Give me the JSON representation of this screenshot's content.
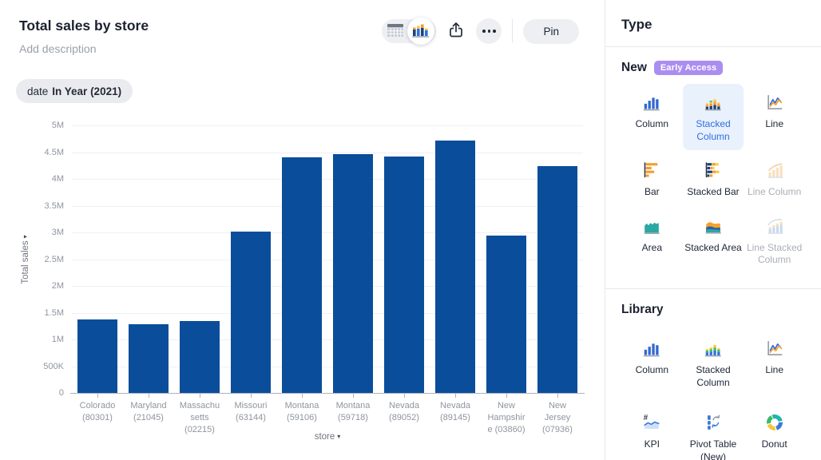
{
  "header": {
    "title": "Total sales by store",
    "description_placeholder": "Add description"
  },
  "toolbar": {
    "pin_label": "Pin"
  },
  "filter_chip": {
    "field": "date",
    "condition": "In Year (2021)"
  },
  "icons": {
    "caret_down": "▾"
  },
  "chart_data": {
    "type": "bar",
    "title": "Total sales by store",
    "x": [
      "Colorado (80301)",
      "Maryland (21045)",
      "Massachusetts (02215)",
      "Missouri (63144)",
      "Montana (59106)",
      "Montana (59718)",
      "Nevada (89052)",
      "Nevada (89145)",
      "New Hampshire (03860)",
      "New Jersey (07936)"
    ],
    "x_display": [
      "Colorado\n(80301)",
      "Maryland\n(21045)",
      "Massachu\nsetts\n(02215)",
      "Missouri\n(63144)",
      "Montana\n(59106)",
      "Montana\n(59718)",
      "Nevada\n(89052)",
      "Nevada\n(89145)",
      "New\nHampshir\ne (03860)",
      "New\nJersey\n(07936)"
    ],
    "values": [
      1370000,
      1290000,
      1350000,
      3010000,
      4400000,
      4470000,
      4420000,
      4720000,
      2940000,
      4240000
    ],
    "xlabel": "store",
    "ylabel": "Total sales",
    "ylim": [
      0,
      5000000
    ],
    "y_ticks": [
      {
        "v": 0,
        "label": "0"
      },
      {
        "v": 500000,
        "label": "500K"
      },
      {
        "v": 1000000,
        "label": "1M"
      },
      {
        "v": 1500000,
        "label": "1.5M"
      },
      {
        "v": 2000000,
        "label": "2M"
      },
      {
        "v": 2500000,
        "label": "2.5M"
      },
      {
        "v": 3000000,
        "label": "3M"
      },
      {
        "v": 3500000,
        "label": "3.5M"
      },
      {
        "v": 4000000,
        "label": "4M"
      },
      {
        "v": 4500000,
        "label": "4.5M"
      },
      {
        "v": 5000000,
        "label": "5M"
      }
    ],
    "bar_color": "#0a4d9b",
    "grid": true,
    "legend": false
  },
  "panel": {
    "title": "Type",
    "sections": [
      {
        "title": "New",
        "badge": "Early Access",
        "items": [
          {
            "label": "Column",
            "icon": "column-chart-icon",
            "state": "normal"
          },
          {
            "label": "Stacked Column",
            "icon": "stacked-column-chart-icon",
            "state": "selected"
          },
          {
            "label": "Line",
            "icon": "line-chart-icon",
            "state": "normal"
          },
          {
            "label": "Bar",
            "icon": "bar-chart-icon",
            "state": "normal"
          },
          {
            "label": "Stacked Bar",
            "icon": "stacked-bar-chart-icon",
            "state": "normal"
          },
          {
            "label": "Line Column",
            "icon": "line-column-chart-icon",
            "state": "disabled"
          },
          {
            "label": "Area",
            "icon": "area-chart-icon",
            "state": "normal"
          },
          {
            "label": "Stacked Area",
            "icon": "stacked-area-chart-icon",
            "state": "normal"
          },
          {
            "label": "Line Stacked Column",
            "icon": "line-stacked-column-chart-icon",
            "state": "disabled"
          }
        ]
      },
      {
        "title": "Library",
        "badge": null,
        "items": [
          {
            "label": "Column",
            "icon": "column-chart-icon",
            "state": "normal"
          },
          {
            "label": "Stacked Column",
            "icon": "stacked-column-library-chart-icon",
            "state": "normal"
          },
          {
            "label": "Line",
            "icon": "line-chart-icon",
            "state": "normal"
          },
          {
            "label": "KPI",
            "icon": "kpi-icon",
            "state": "normal"
          },
          {
            "label": "Pivot Table (New)",
            "icon": "pivot-table-icon",
            "state": "normal"
          },
          {
            "label": "Donut",
            "icon": "donut-chart-icon",
            "state": "normal"
          }
        ]
      }
    ]
  },
  "colors": {
    "bar": "#0a4d9b",
    "selected_tile_bg": "#e9f1fd",
    "selected_tile_text": "#2e6fe0",
    "badge_bg": "#ab8df1",
    "chip_bg": "#e9ebef"
  }
}
